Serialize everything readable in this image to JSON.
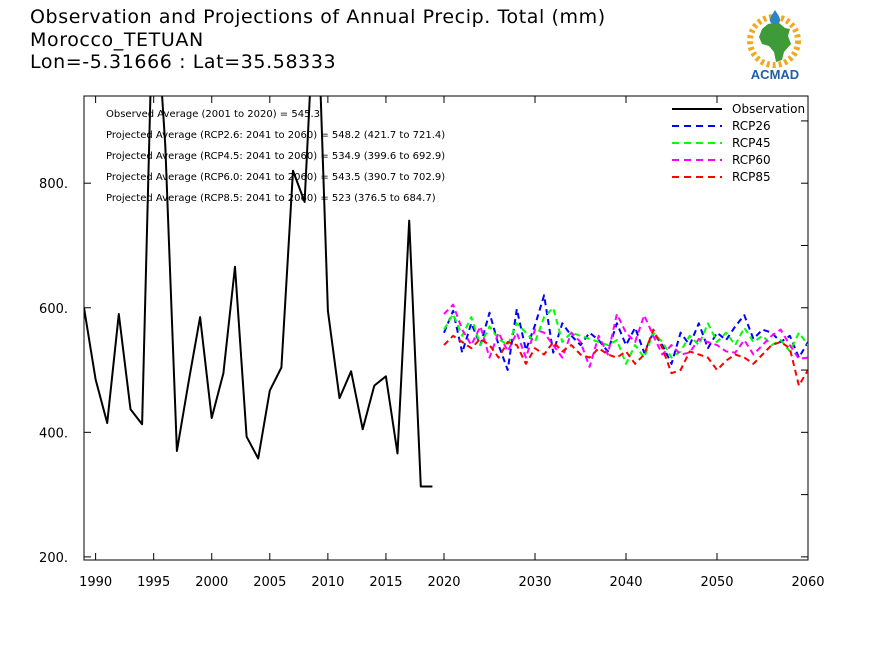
{
  "title": {
    "line1": "Observation and Projections of Annual Precip. Total (mm)",
    "line2": "Morocco_TETUAN",
    "line3": "Lon=-5.31666 : Lat=35.58333"
  },
  "logo": {
    "text": "ACMAD"
  },
  "annotations": [
    "Observed Average (2001 to 2020) = 545.3",
    "Projected Average (RCP2.6: 2041 to 2060) = 548.2 (421.7 to 721.4)",
    "Projected Average (RCP4.5: 2041 to 2060) = 534.9 (399.6 to 692.9)",
    "Projected Average (RCP6.0: 2041 to 2060) = 543.5 (390.7 to 702.9)",
    "Projected Average (RCP8.5: 2041 to 2060) = 523 (376.5 to 684.7)"
  ],
  "chart_data": {
    "type": "line",
    "xlim": [
      1989,
      2060
    ],
    "ylim": [
      195,
      940
    ],
    "x_ticks": [
      "1990",
      "1995",
      "2000",
      "2005",
      "2010",
      "2015",
      "2020",
      "2030",
      "2040",
      "2050",
      "2060"
    ],
    "x_tick_values": [
      1990,
      1995,
      2000,
      2005,
      2010,
      2015,
      2020,
      2030,
      2040,
      2050,
      2060
    ],
    "y_ticks": [
      "200.",
      "400.",
      "600.",
      "800."
    ],
    "y_tick_values": [
      200,
      400,
      600,
      800
    ],
    "legend_position": "top-right",
    "series": [
      {
        "name": "Observation",
        "color": "#000000",
        "dash": "solid",
        "x": [
          1989,
          1990,
          1991,
          1992,
          1993,
          1994,
          1995,
          1996,
          1997,
          1998,
          1999,
          2000,
          2001,
          2002,
          2003,
          2004,
          2005,
          2006,
          2007,
          2008,
          2009,
          2010,
          2011,
          2012,
          2013,
          2014,
          2015,
          2016,
          2017,
          2018,
          2019
        ],
        "y": [
          600,
          485,
          415,
          590,
          437,
          413,
          1150,
          860,
          370,
          480,
          585,
          423,
          495,
          666,
          393,
          358,
          467,
          504,
          820,
          770,
          1150,
          595,
          455,
          498,
          405,
          475,
          490,
          366,
          740,
          313,
          313
        ]
      },
      {
        "name": "RCP26",
        "color": "#0000ff",
        "dash": "dashed",
        "x": [
          2020,
          2021,
          2022,
          2023,
          2024,
          2025,
          2026,
          2027,
          2028,
          2029,
          2030,
          2031,
          2032,
          2033,
          2034,
          2035,
          2036,
          2037,
          2038,
          2039,
          2040,
          2041,
          2042,
          2043,
          2044,
          2045,
          2046,
          2047,
          2048,
          2049,
          2050,
          2051,
          2052,
          2053,
          2054,
          2055,
          2056,
          2057,
          2058,
          2059,
          2060
        ],
        "y": [
          560,
          595,
          528,
          575,
          540,
          592,
          540,
          500,
          598,
          532,
          572,
          620,
          528,
          575,
          555,
          540,
          560,
          548,
          530,
          575,
          540,
          568,
          528,
          560,
          540,
          510,
          560,
          540,
          575,
          535,
          560,
          548,
          570,
          588,
          550,
          565,
          560,
          545,
          555,
          520,
          545
        ]
      },
      {
        "name": "RCP45",
        "color": "#00ff00",
        "dash": "dashed",
        "x": [
          2020,
          2021,
          2022,
          2023,
          2024,
          2025,
          2026,
          2027,
          2028,
          2029,
          2030,
          2031,
          2032,
          2033,
          2034,
          2035,
          2036,
          2037,
          2038,
          2039,
          2040,
          2041,
          2042,
          2043,
          2044,
          2045,
          2046,
          2047,
          2048,
          2049,
          2050,
          2051,
          2052,
          2053,
          2054,
          2055,
          2056,
          2057,
          2058,
          2059,
          2060
        ],
        "y": [
          565,
          590,
          555,
          585,
          540,
          570,
          550,
          540,
          575,
          560,
          545,
          585,
          600,
          545,
          560,
          555,
          550,
          545,
          540,
          548,
          510,
          540,
          520,
          560,
          545,
          520,
          530,
          555,
          540,
          575,
          545,
          560,
          540,
          568,
          545,
          555,
          540,
          548,
          530,
          560,
          540
        ]
      },
      {
        "name": "RCP60",
        "color": "#ff00ff",
        "dash": "dashed",
        "x": [
          2020,
          2021,
          2022,
          2023,
          2024,
          2025,
          2026,
          2027,
          2028,
          2029,
          2030,
          2031,
          2032,
          2033,
          2034,
          2035,
          2036,
          2037,
          2038,
          2039,
          2040,
          2041,
          2042,
          2043,
          2044,
          2045,
          2046,
          2047,
          2048,
          2049,
          2050,
          2051,
          2052,
          2053,
          2054,
          2055,
          2056,
          2057,
          2058,
          2059,
          2060
        ],
        "y": [
          590,
          605,
          565,
          540,
          570,
          520,
          560,
          530,
          560,
          520,
          565,
          560,
          540,
          520,
          560,
          545,
          505,
          555,
          525,
          590,
          560,
          545,
          588,
          555,
          525,
          540,
          525,
          528,
          550,
          545,
          540,
          530,
          528,
          548,
          525,
          540,
          555,
          565,
          540,
          518,
          520
        ]
      },
      {
        "name": "RCP85",
        "color": "#ff0000",
        "dash": "dashed",
        "x": [
          2020,
          2021,
          2022,
          2023,
          2024,
          2025,
          2026,
          2027,
          2028,
          2029,
          2030,
          2031,
          2032,
          2033,
          2034,
          2035,
          2036,
          2037,
          2038,
          2039,
          2040,
          2041,
          2042,
          2043,
          2044,
          2045,
          2046,
          2047,
          2048,
          2049,
          2050,
          2051,
          2052,
          2053,
          2054,
          2055,
          2056,
          2057,
          2058,
          2059,
          2060
        ],
        "y": [
          540,
          555,
          545,
          535,
          550,
          540,
          520,
          545,
          540,
          510,
          535,
          525,
          545,
          530,
          540,
          525,
          520,
          535,
          525,
          520,
          530,
          510,
          525,
          565,
          535,
          495,
          500,
          530,
          525,
          520,
          500,
          515,
          525,
          520,
          510,
          525,
          540,
          545,
          535,
          475,
          500
        ]
      }
    ]
  }
}
